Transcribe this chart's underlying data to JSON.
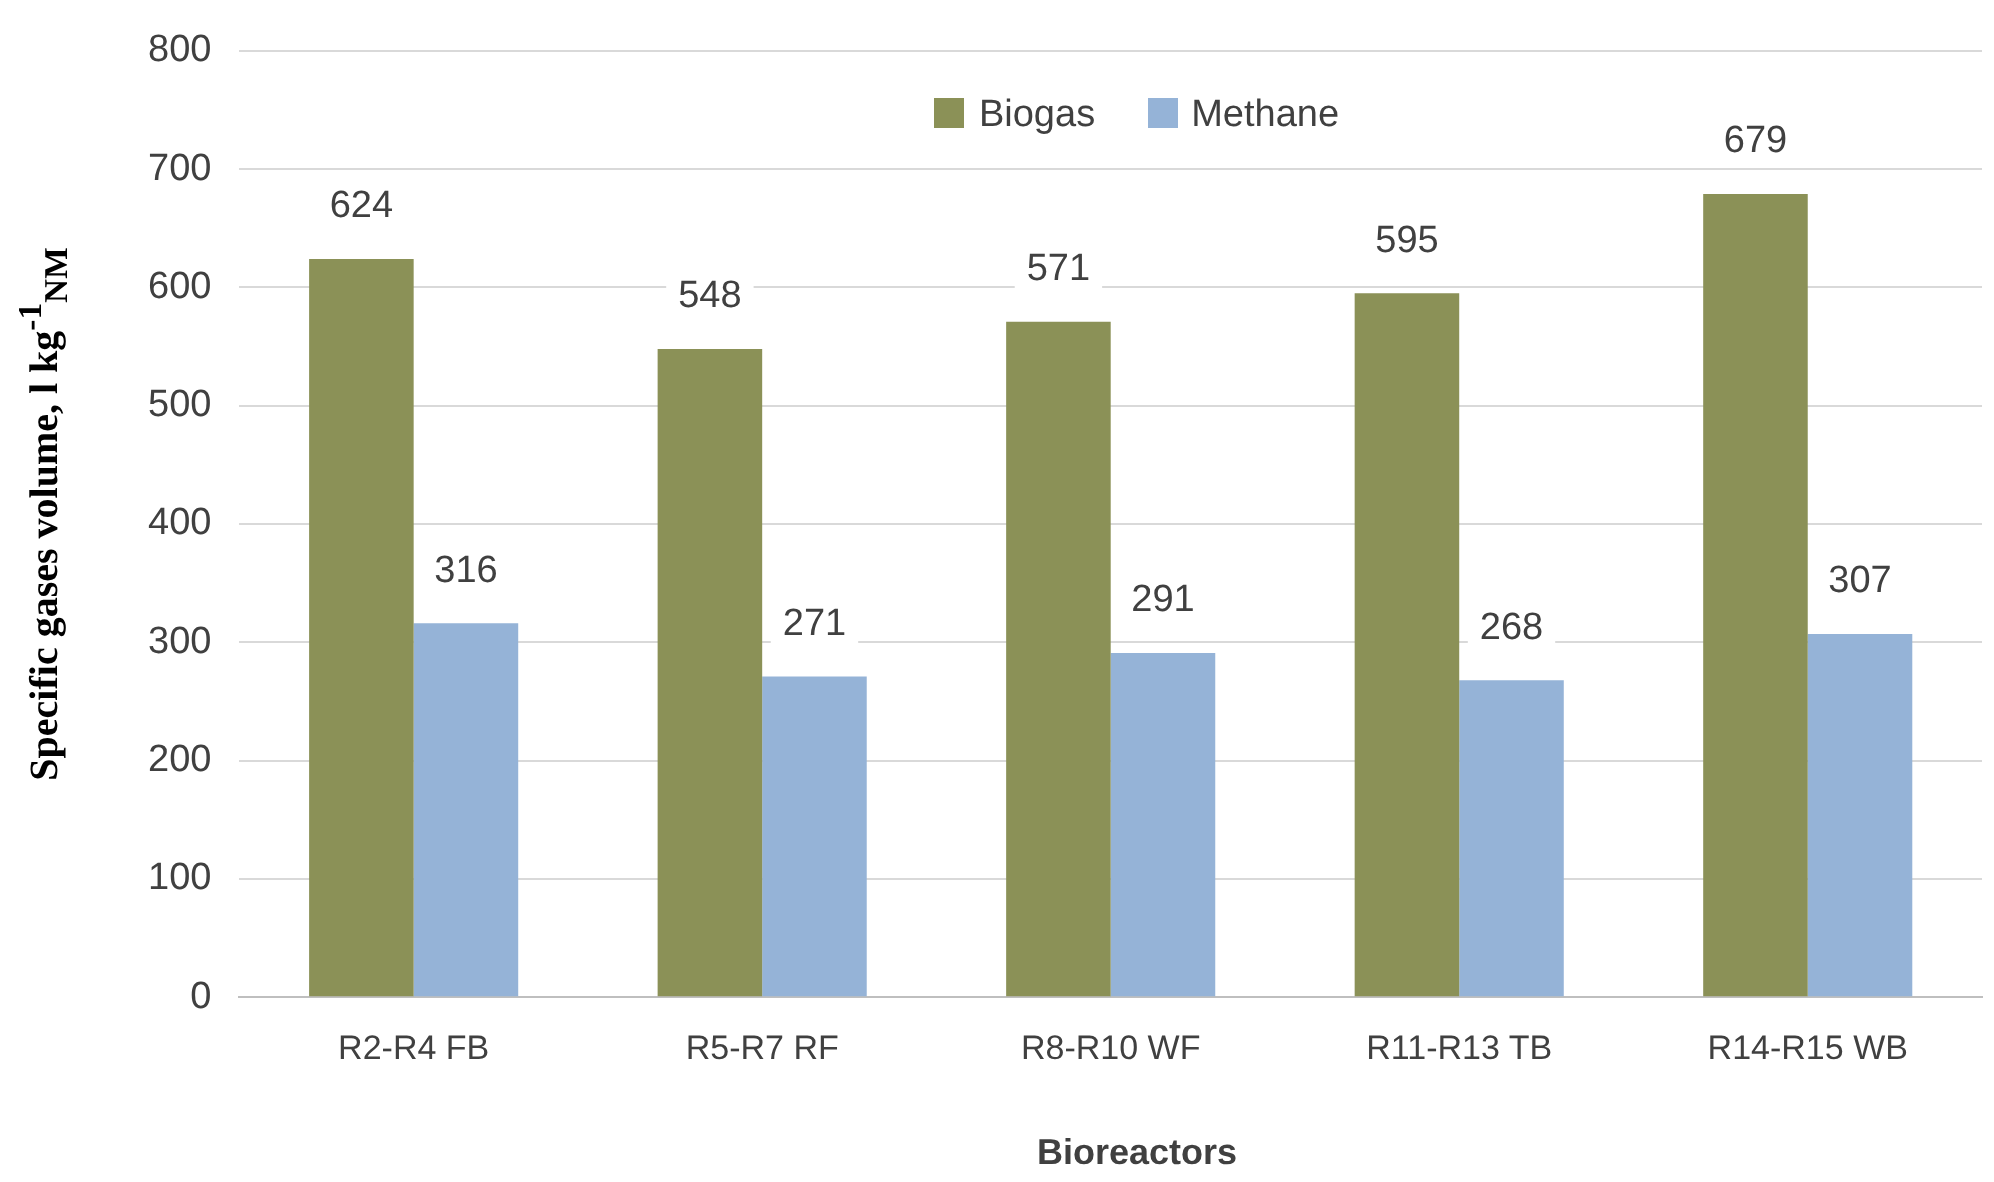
{
  "chart_data": {
    "type": "bar",
    "xlabel": "Bioreactors",
    "ylabel": "Specific gases volume, l kg$^{-1}$$_{NM}$",
    "categories": [
      "R2-R4 FB",
      "R5-R7 RF",
      "R8-R10 WF",
      "R11-R13 TB",
      "R14-R15 WB"
    ],
    "series": [
      {
        "name": "Biogas",
        "color": "#8b9157",
        "values": [
          624,
          548,
          571,
          595,
          679
        ]
      },
      {
        "name": "Methane",
        "color": "#95b3d7",
        "values": [
          316,
          271,
          291,
          268,
          307
        ]
      }
    ],
    "ylim": [
      0,
      800
    ],
    "yticks": [
      0,
      100,
      200,
      300,
      400,
      500,
      600,
      700,
      800
    ],
    "grid": "y",
    "legend": "top",
    "data_labels": true
  }
}
